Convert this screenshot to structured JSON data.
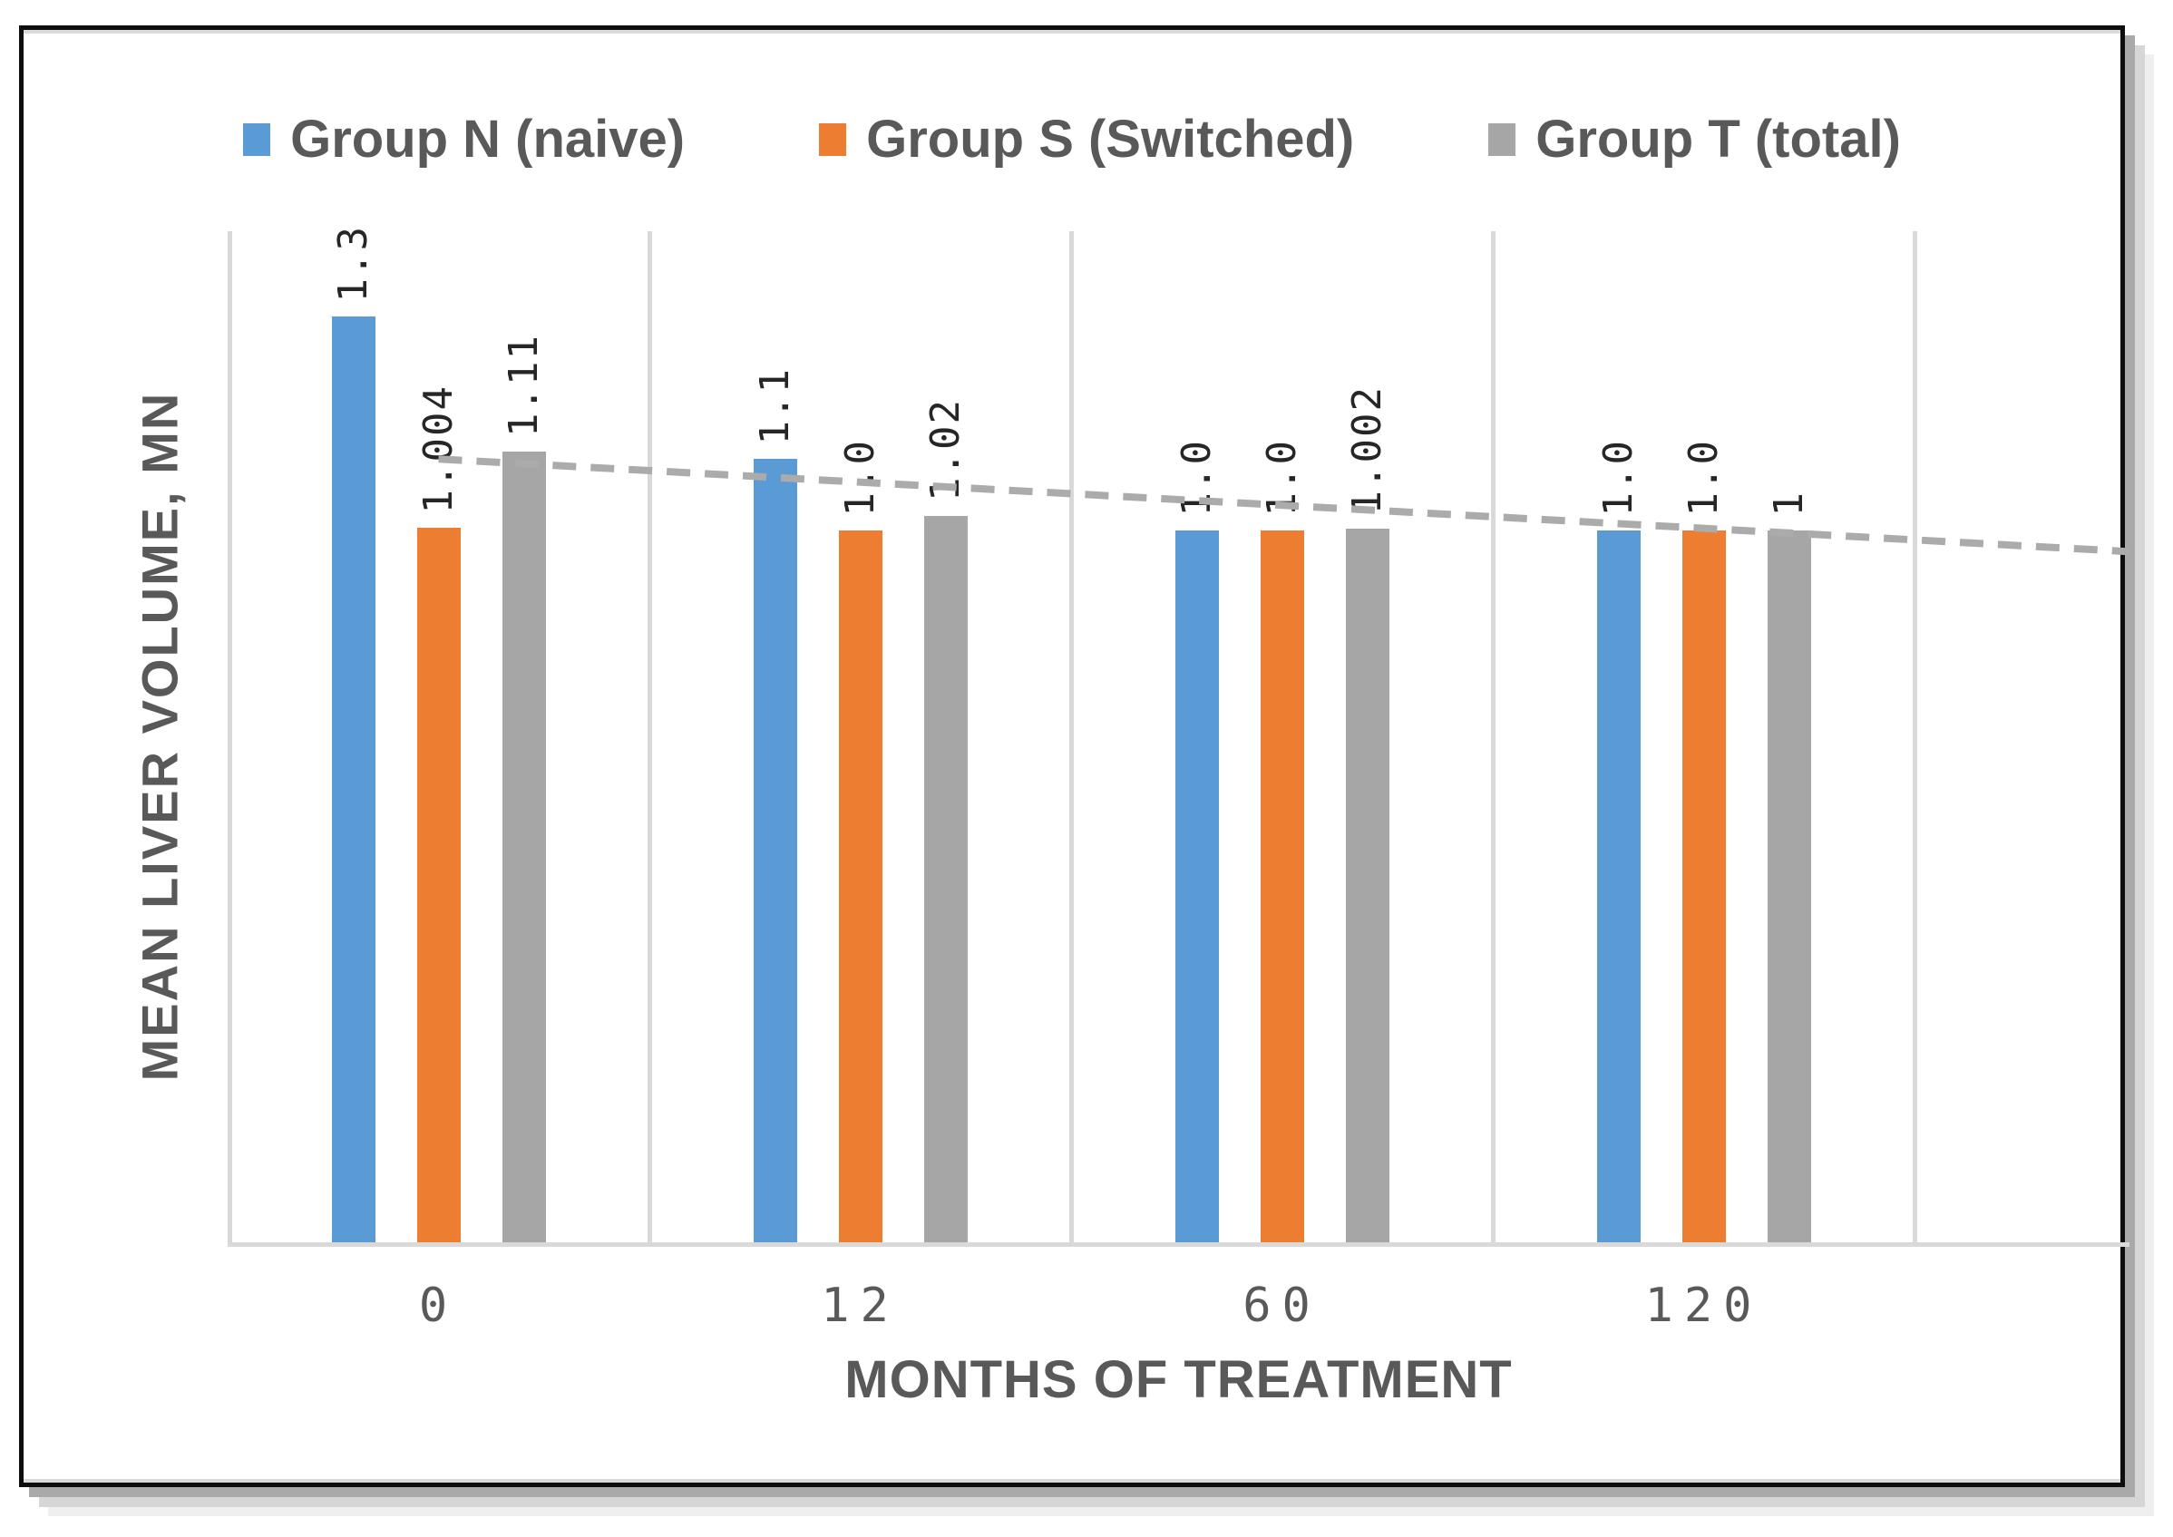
{
  "chart_data": {
    "type": "bar",
    "title": "",
    "categories": [
      "0",
      "12",
      "60",
      "120"
    ],
    "series": [
      {
        "name": "Group N (naive)",
        "color": "#5B9BD5",
        "values": [
          1.3,
          1.1,
          1.0,
          1.0
        ],
        "labels": [
          "1.3",
          "1.1",
          "1.0",
          "1.0"
        ]
      },
      {
        "name": "Group S (Switched)",
        "color": "#ED7D31",
        "values": [
          1.004,
          1.0,
          1.0,
          1.0
        ],
        "labels": [
          "1.004",
          "1.0",
          "1.0",
          "1.0"
        ]
      },
      {
        "name": "Group T (total)",
        "color": "#A6A6A6",
        "values": [
          1.11,
          1.02,
          1.002,
          1.0
        ],
        "labels": [
          "1.11",
          "1.02",
          "1.002",
          "1"
        ]
      }
    ],
    "xlabel": "MONTHS OF TREATMENT",
    "ylabel": "MEAN LIVER VOLUME, MN",
    "ylim": [
      0,
      1.42
    ],
    "grid": "vertical category separators only, no y-axis tick labels",
    "legend_position": "top",
    "data_label_rotation": "vertical-bottom-to-top",
    "trendline": {
      "series": "Group T (total)",
      "style": "dashed",
      "color": "#ABABAB",
      "start_value": 1.1,
      "end_value": 0.97,
      "starts_at_first_category_center": true,
      "extends_one_period_beyond_last_category": true
    }
  },
  "frame": {
    "border_color": "#0d0d0d",
    "gridline_color": "#d9d9d9",
    "text_color": "#595959",
    "data_label_color": "#262626"
  }
}
